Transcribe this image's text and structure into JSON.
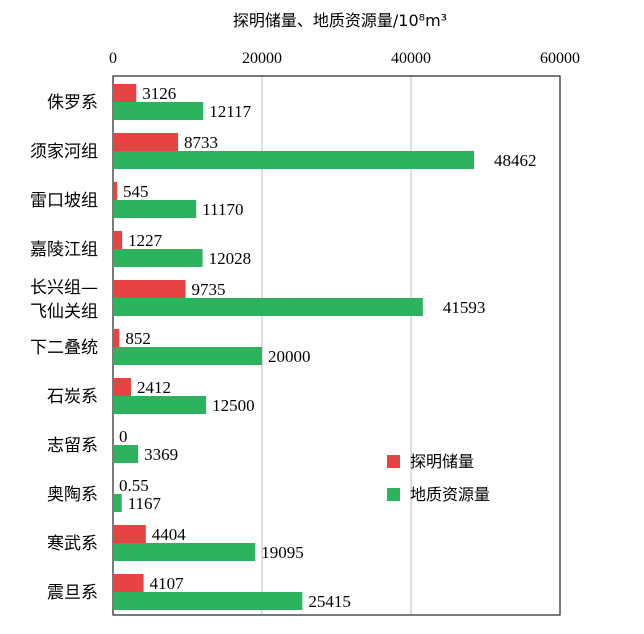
{
  "chart_data": {
    "type": "bar",
    "orientation": "horizontal",
    "title": "探明储量、地质资源量/10⁸m³",
    "axis": {
      "min": 0,
      "max": 60000,
      "ticks": [
        "0",
        "20000",
        "40000",
        "60000"
      ],
      "position": "top"
    },
    "grid": true,
    "legend_position": "center-right",
    "categories": [
      [
        "侏罗系"
      ],
      [
        "须家河组"
      ],
      [
        "雷口坡组"
      ],
      [
        "嘉陵江组"
      ],
      [
        "长兴组—",
        "飞仙关组"
      ],
      [
        "下二叠统"
      ],
      [
        "石炭系"
      ],
      [
        "志留系"
      ],
      [
        "奥陶系"
      ],
      [
        "寒武系"
      ],
      [
        "震旦系"
      ]
    ],
    "series": [
      {
        "name": "探明储量",
        "color": "#e84343",
        "values": [
          3126,
          8733,
          545,
          1227,
          9735,
          852,
          2412,
          0,
          0.55,
          4404,
          4107
        ],
        "labels": [
          "3126",
          "8733",
          "545",
          "1227",
          "9735",
          "852",
          "2412",
          "0",
          "0.55",
          "4404",
          "4107"
        ]
      },
      {
        "name": "地质资源量",
        "color": "#2db35d",
        "values": [
          12117,
          48462,
          11170,
          12028,
          41593,
          20000,
          12500,
          3369,
          1167,
          19095,
          25415
        ],
        "labels": [
          "12117",
          "48462",
          "11170",
          "12028",
          "41593",
          "20000",
          "12500",
          "3369",
          "1167",
          "19095",
          "25415"
        ]
      }
    ]
  }
}
